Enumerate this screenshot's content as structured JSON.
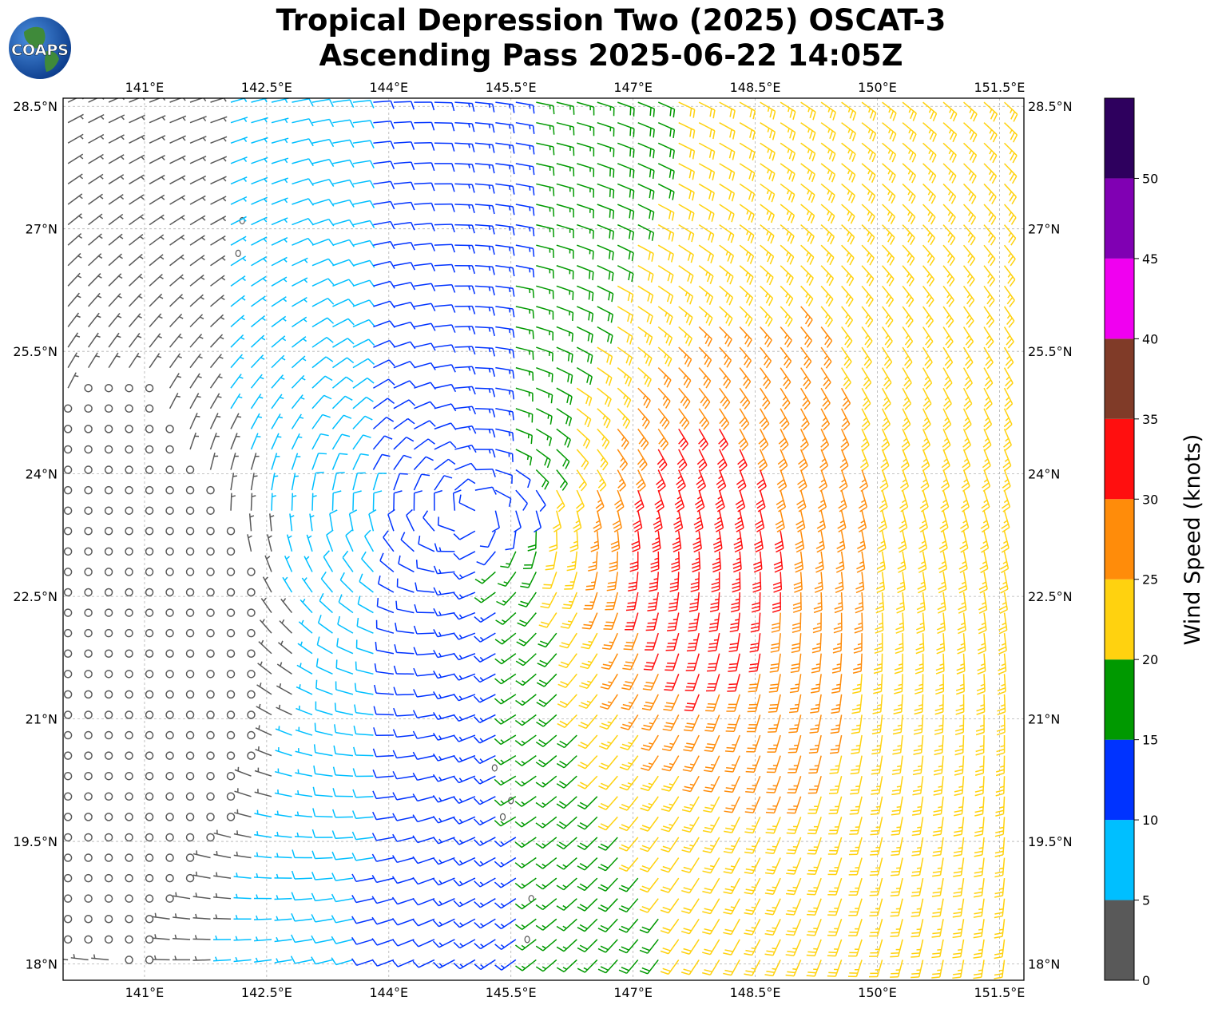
{
  "title_line1": "Tropical Depression Two (2025) OSCAT-3",
  "title_line2": "Ascending Pass 2025-06-22 14:05Z",
  "logo_text": "COAPS",
  "map": {
    "lon_ticks": [
      "141°E",
      "142.5°E",
      "144°E",
      "145.5°E",
      "147°E",
      "148.5°E",
      "150°E",
      "151.5°E"
    ],
    "lat_ticks": [
      "28.5°N",
      "27°N",
      "25.5°N",
      "24°N",
      "22.5°N",
      "21°N",
      "19.5°N",
      "18°N"
    ],
    "lon_range": [
      140.0,
      151.8
    ],
    "lat_range": [
      17.8,
      28.6
    ],
    "grid": true,
    "symbol": "wind-barbs",
    "storm_center": {
      "lon": 145.2,
      "lat": 23.6
    },
    "max_wind_region": {
      "lon": 147.6,
      "lat": 23.0
    }
  },
  "colorbar": {
    "label": "Wind Speed (knots)",
    "tick_labels": [
      "0",
      "5",
      "10",
      "15",
      "20",
      "25",
      "30",
      "35",
      "40",
      "45",
      "50"
    ],
    "bins": [
      {
        "min": 0,
        "max": 5,
        "color": "#595959"
      },
      {
        "min": 5,
        "max": 10,
        "color": "#00bfff"
      },
      {
        "min": 10,
        "max": 15,
        "color": "#0033ff"
      },
      {
        "min": 15,
        "max": 20,
        "color": "#009900"
      },
      {
        "min": 20,
        "max": 25,
        "color": "#ffd20f"
      },
      {
        "min": 25,
        "max": 30,
        "color": "#ff8c0a"
      },
      {
        "min": 30,
        "max": 35,
        "color": "#ff0f0f"
      },
      {
        "min": 35,
        "max": 40,
        "color": "#803b28"
      },
      {
        "min": 40,
        "max": 45,
        "color": "#f000f0"
      },
      {
        "min": 45,
        "max": 50,
        "color": "#8000b3"
      },
      {
        "min": 50,
        "max": 55,
        "color": "#2e005e"
      }
    ]
  },
  "colors": {
    "gridline": "#b0b0b0",
    "frame": "#000000",
    "land": "#555555"
  }
}
